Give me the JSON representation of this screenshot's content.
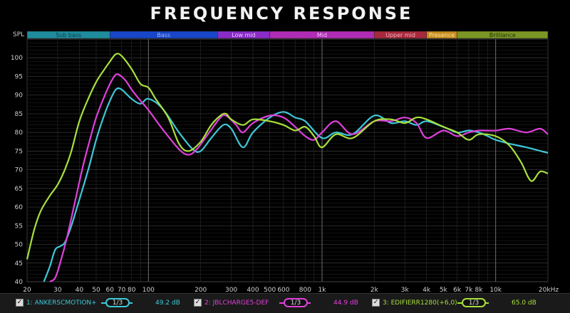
{
  "chart_data": {
    "type": "line",
    "title": "FREQUENCY RESPONSE",
    "ylabel": "SPL",
    "xscale": "log",
    "xlim": [
      20,
      20000
    ],
    "ylim": [
      40,
      105
    ],
    "grid": true,
    "x_ticks": [
      {
        "v": 20,
        "l": "20"
      },
      {
        "v": 30,
        "l": "30"
      },
      {
        "v": 40,
        "l": "40"
      },
      {
        "v": 50,
        "l": "50"
      },
      {
        "v": 60,
        "l": "60"
      },
      {
        "v": 70,
        "l": "70"
      },
      {
        "v": 80,
        "l": "80"
      },
      {
        "v": 100,
        "l": "100"
      },
      {
        "v": 200,
        "l": "200"
      },
      {
        "v": 300,
        "l": "300"
      },
      {
        "v": 400,
        "l": "400"
      },
      {
        "v": 500,
        "l": "500"
      },
      {
        "v": 600,
        "l": "600"
      },
      {
        "v": 800,
        "l": "800"
      },
      {
        "v": 1000,
        "l": "1k"
      },
      {
        "v": 2000,
        "l": "2k"
      },
      {
        "v": 3000,
        "l": "3k"
      },
      {
        "v": 4000,
        "l": "4k"
      },
      {
        "v": 5000,
        "l": "5k"
      },
      {
        "v": 6000,
        "l": "6k"
      },
      {
        "v": 7000,
        "l": "7k"
      },
      {
        "v": 8000,
        "l": "8k"
      },
      {
        "v": 10000,
        "l": "10k"
      },
      {
        "v": 20000,
        "l": "20kHz"
      }
    ],
    "y_ticks": [
      40,
      45,
      50,
      55,
      60,
      65,
      70,
      75,
      80,
      85,
      90,
      95,
      100
    ],
    "bands": [
      {
        "label": "Sub bass",
        "from": 20,
        "to": 60,
        "color": "#1e8c9c",
        "text": "#0d3c44"
      },
      {
        "label": "Bass",
        "from": 60,
        "to": 250,
        "color": "#1846c8",
        "text": "#9fb6f2"
      },
      {
        "label": "Low mid",
        "from": 250,
        "to": 500,
        "color": "#8a2cc8",
        "text": "#e6c8ff"
      },
      {
        "label": "Mid",
        "from": 500,
        "to": 2000,
        "color": "#b02cb4",
        "text": "#f2c8f2"
      },
      {
        "label": "Upper mid",
        "from": 2000,
        "to": 4000,
        "color": "#a8283c",
        "text": "#f0b4bc"
      },
      {
        "label": "Presence",
        "from": 4000,
        "to": 6000,
        "color": "#c88c1c",
        "text": "#f8e4a8"
      },
      {
        "label": "Brilliance",
        "from": 6000,
        "to": 20000,
        "color": "#7a9624",
        "text": "#203008"
      }
    ],
    "series": [
      {
        "name": "1: ANKERSCMOTION+",
        "color": "#3ec8d8",
        "smoothing": "1/3",
        "level": "49.2 dB",
        "x": [
          25,
          27,
          29,
          31,
          33,
          36,
          40,
          45,
          50,
          55,
          60,
          65,
          70,
          80,
          90,
          100,
          120,
          150,
          180,
          200,
          230,
          270,
          300,
          350,
          400,
          500,
          600,
          700,
          800,
          1000,
          1200,
          1500,
          2000,
          2500,
          3000,
          3500,
          4000,
          5000,
          6000,
          7000,
          8000,
          9000,
          10000,
          12000,
          15000,
          20000
        ],
        "y": [
          40,
          44,
          48.5,
          49.5,
          50.5,
          55,
          62,
          70,
          78,
          84,
          88.5,
          91.5,
          91.5,
          89,
          87.7,
          89,
          86.5,
          80,
          75.5,
          75,
          78.5,
          82,
          81,
          76,
          80,
          84,
          85.5,
          84,
          83,
          78.5,
          80,
          79.5,
          84.5,
          82.5,
          83,
          82,
          83,
          81.5,
          80,
          80.5,
          80,
          79,
          78,
          77,
          76,
          74.5
        ]
      },
      {
        "name": "2: JBLCHARGE5-DEF",
        "color": "#e040dc",
        "smoothing": "1/3",
        "level": "44.9 dB",
        "x": [
          27,
          29,
          31,
          34,
          38,
          42,
          46,
          50,
          55,
          60,
          65,
          70,
          75,
          80,
          90,
          100,
          120,
          150,
          170,
          190,
          220,
          260,
          280,
          320,
          350,
          400,
          500,
          600,
          700,
          800,
          900,
          1000,
          1200,
          1500,
          2000,
          2500,
          3000,
          3500,
          4000,
          5000,
          6000,
          7000,
          8000,
          10000,
          12000,
          15000,
          18000,
          20000
        ],
        "y": [
          40,
          41,
          45,
          52,
          62,
          71,
          78,
          84,
          89,
          93,
          95.5,
          95,
          93.5,
          91.5,
          88.5,
          86,
          81,
          75.5,
          74,
          75.5,
          79.5,
          84,
          84.5,
          82,
          80,
          82.5,
          84.5,
          84,
          81.5,
          79,
          78,
          80,
          83,
          79.5,
          83,
          83,
          84,
          82.5,
          78.5,
          80.5,
          79,
          80,
          80.5,
          80.5,
          81,
          80,
          81,
          79.5
        ]
      },
      {
        "name": "3: EDIFIERR1280(+6,0)",
        "color": "#a8e03c",
        "smoothing": "1/3",
        "level": "65.0 dB",
        "x": [
          20,
          22,
          24,
          27,
          30,
          33,
          36,
          40,
          45,
          50,
          55,
          60,
          65,
          70,
          80,
          90,
          100,
          110,
          130,
          150,
          170,
          200,
          230,
          260,
          280,
          300,
          350,
          400,
          500,
          600,
          700,
          800,
          900,
          1000,
          1200,
          1500,
          2000,
          2500,
          3000,
          3500,
          4000,
          5000,
          6000,
          7000,
          8000,
          10000,
          12000,
          14000,
          16000,
          18000,
          20000
        ],
        "y": [
          46,
          54,
          59,
          63,
          66,
          70,
          75,
          83,
          89,
          93.5,
          96.5,
          99,
          101,
          100.5,
          97,
          93,
          92,
          89,
          84,
          77,
          75,
          77.5,
          82,
          84.5,
          85,
          83.5,
          82,
          83.5,
          83,
          82,
          80.5,
          81.5,
          79,
          76,
          79.5,
          78.5,
          83,
          83.5,
          82.5,
          84,
          83.5,
          81.5,
          80,
          78,
          79.5,
          79,
          76.5,
          72,
          67,
          69.5,
          69
        ]
      }
    ]
  }
}
